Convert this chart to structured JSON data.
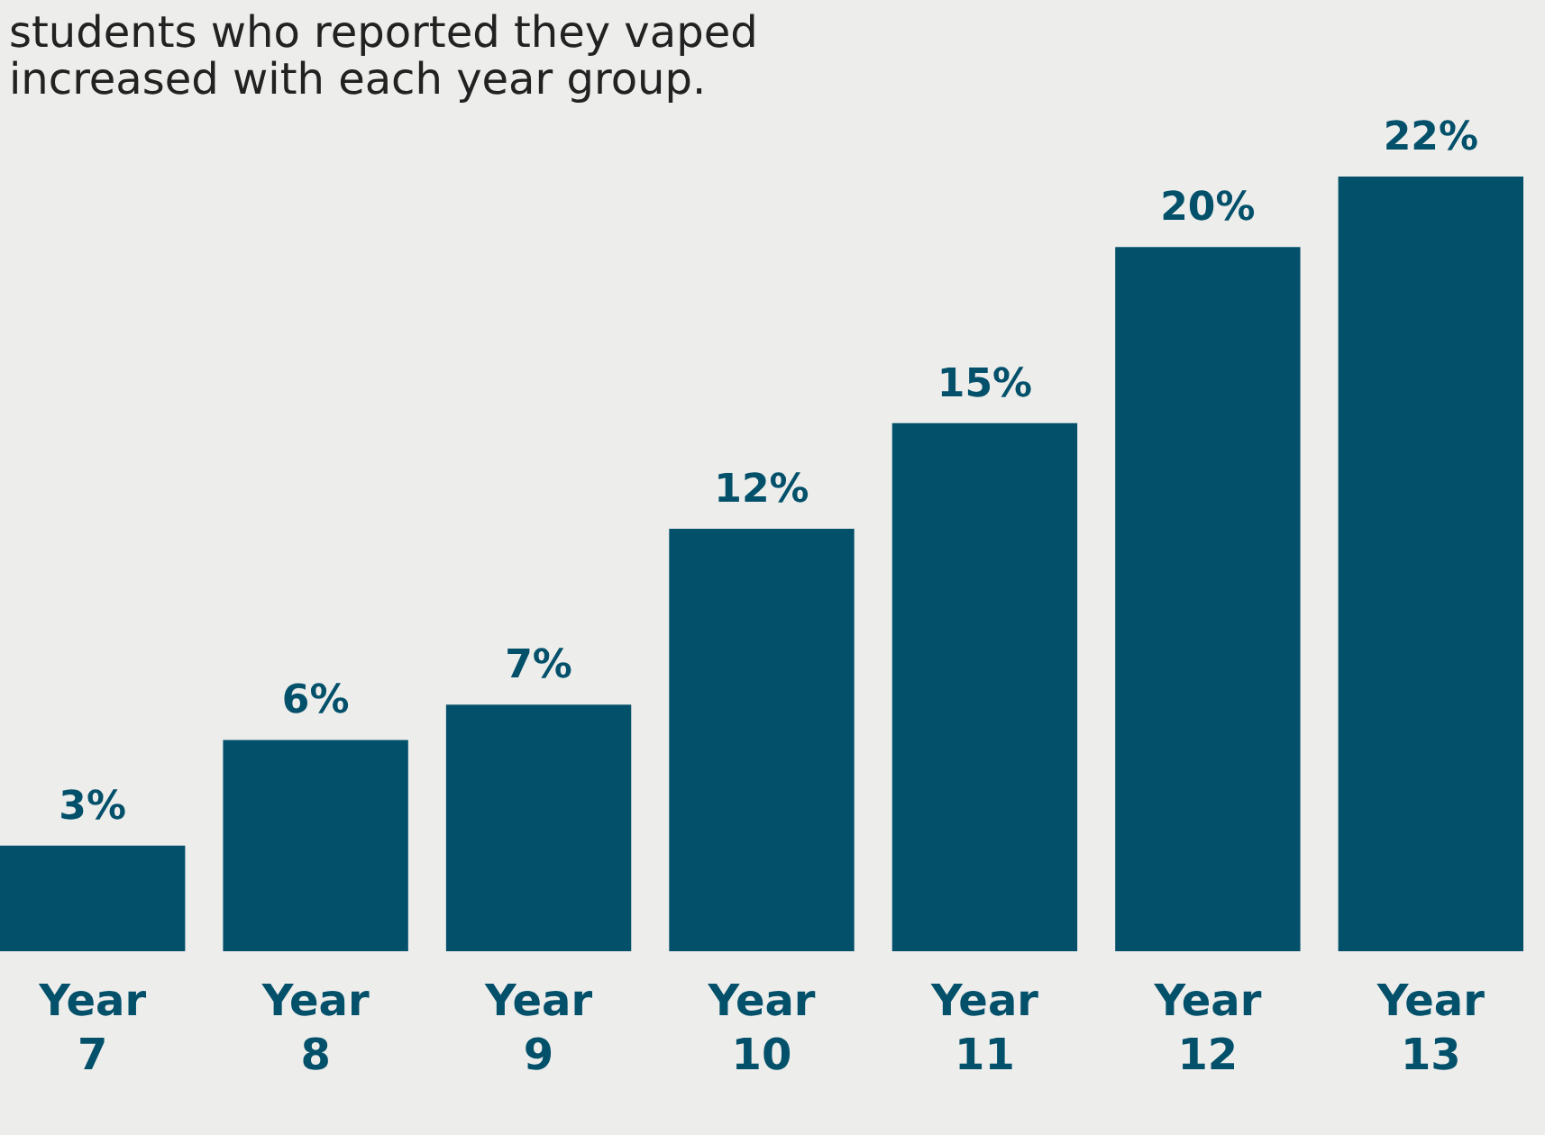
{
  "chart_data": {
    "type": "bar",
    "title": "students who reported they vaped",
    "subtitle": "increased with each year group.",
    "categories": [
      "Year 7",
      "Year 8",
      "Year 9",
      "Year 10",
      "Year 11",
      "Year 12",
      "Year 13"
    ],
    "values": [
      3,
      6,
      7,
      12,
      15,
      20,
      22
    ],
    "value_labels": [
      "3%",
      "6%",
      "7%",
      "12%",
      "15%",
      "20%",
      "22%"
    ],
    "color": "#03506b"
  }
}
